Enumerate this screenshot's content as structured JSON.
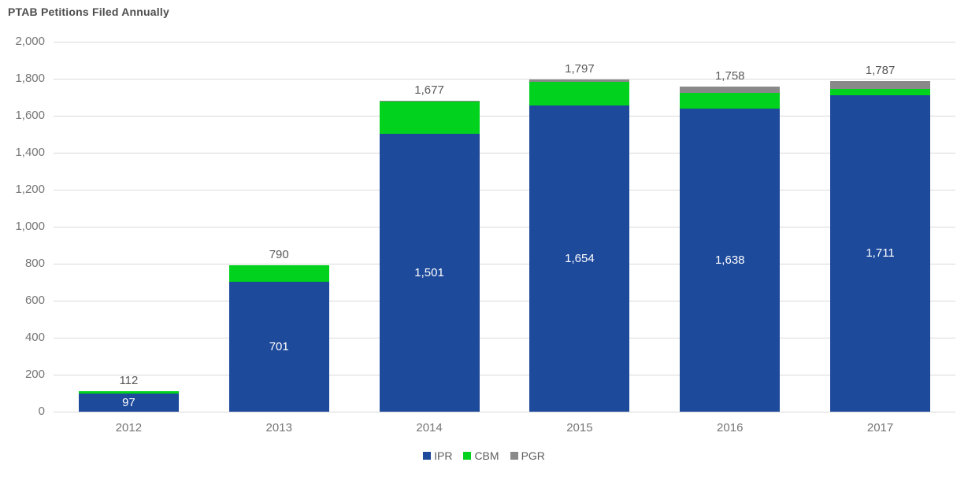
{
  "title": "PTAB Petitions Filed Annually",
  "colors": {
    "ipr": "#1e4a9c",
    "cbm": "#00d21e",
    "pgr": "#898989",
    "grid": "#d9d9d9",
    "axis_text": "#757575",
    "total_label_text": "#595959",
    "inside_label_text": "#ffffff",
    "title_text": "#4d4d4d"
  },
  "chart_data": {
    "type": "bar",
    "stacked": true,
    "title": "PTAB Petitions Filed Annually",
    "xlabel": "",
    "ylabel": "",
    "ylim": [
      0,
      2000
    ],
    "ytick_step": 200,
    "grid": true,
    "legend_position": "bottom",
    "categories": [
      "2012",
      "2013",
      "2014",
      "2015",
      "2016",
      "2017"
    ],
    "series": [
      {
        "name": "IPR",
        "color_key": "ipr",
        "values": [
          97,
          701,
          1501,
          1654,
          1638,
          1711
        ]
      },
      {
        "name": "CBM",
        "color_key": "cbm",
        "values": [
          15,
          89,
          174,
          131,
          87,
          32
        ]
      },
      {
        "name": "PGR",
        "color_key": "pgr",
        "values": [
          0,
          0,
          2,
          12,
          33,
          44
        ]
      }
    ],
    "totals_labels": [
      "112",
      "790",
      "1,677",
      "1,797",
      "1,758",
      "1,787"
    ],
    "inside_labels": [
      "97",
      "701",
      "1,501",
      "1,654",
      "1,638",
      "1,711"
    ],
    "ytick_labels": [
      "2,000",
      "1,800",
      "1,600",
      "1,400",
      "1,200",
      "1,000",
      "800",
      "600",
      "400",
      "200",
      "0"
    ],
    "legend": [
      "IPR",
      "CBM",
      "PGR"
    ]
  }
}
